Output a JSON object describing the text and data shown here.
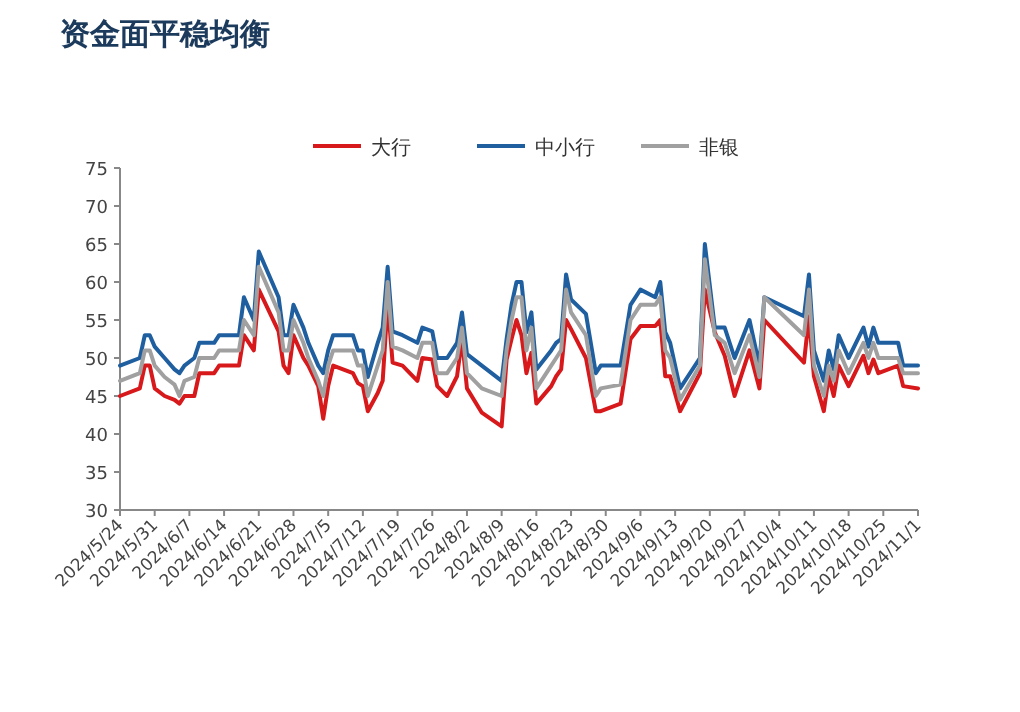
{
  "chart_data": {
    "type": "line",
    "title": "资金面平稳均衡",
    "legend": "top",
    "grid": false,
    "marker": "none",
    "line_style": "solid",
    "x": [
      "2024-05-24",
      "2024-05-28",
      "2024-05-29",
      "2024-05-30",
      "2024-05-31",
      "2024-06-02",
      "2024-06-04",
      "2024-06-05",
      "2024-06-06",
      "2024-06-08",
      "2024-06-09",
      "2024-06-12",
      "2024-06-13",
      "2024-06-14",
      "2024-06-17",
      "2024-06-18",
      "2024-06-20",
      "2024-06-21",
      "2024-06-25",
      "2024-06-26",
      "2024-06-27",
      "2024-06-28",
      "2024-06-30",
      "2024-07-01",
      "2024-07-03",
      "2024-07-04",
      "2024-07-05",
      "2024-07-06",
      "2024-07-10",
      "2024-07-11",
      "2024-07-12",
      "2024-07-13",
      "2024-07-15",
      "2024-07-16",
      "2024-07-17",
      "2024-07-18",
      "2024-07-20",
      "2024-07-23",
      "2024-07-24",
      "2024-07-26",
      "2024-07-27",
      "2024-07-29",
      "2024-07-31",
      "2024-08-01",
      "2024-08-02",
      "2024-08-05",
      "2024-08-09",
      "2024-08-10",
      "2024-08-11",
      "2024-08-12",
      "2024-08-13",
      "2024-08-14",
      "2024-08-15",
      "2024-08-16",
      "2024-08-19",
      "2024-08-20",
      "2024-08-21",
      "2024-08-22",
      "2024-08-23",
      "2024-08-26",
      "2024-08-28",
      "2024-08-29",
      "2024-09-02",
      "2024-09-04",
      "2024-09-06",
      "2024-09-09",
      "2024-09-10",
      "2024-09-11",
      "2024-09-12",
      "2024-09-14",
      "2024-09-18",
      "2024-09-19",
      "2024-09-21",
      "2024-09-23",
      "2024-09-25",
      "2024-09-28",
      "2024-09-30",
      "2024-10-01",
      "2024-10-09",
      "2024-10-10",
      "2024-10-11",
      "2024-10-13",
      "2024-10-14",
      "2024-10-15",
      "2024-10-16",
      "2024-10-18",
      "2024-10-21",
      "2024-10-22",
      "2024-10-23",
      "2024-10-24",
      "2024-10-28",
      "2024-10-29",
      "2024-11-01"
    ],
    "series": [
      {
        "name": "大行",
        "color": "#d7191c",
        "values": [
          45,
          46,
          49,
          49,
          46,
          45,
          44.5,
          44,
          45,
          45,
          48,
          48,
          49,
          49,
          49,
          53,
          51,
          59,
          53.5,
          49,
          48,
          53,
          50,
          49,
          46.3,
          42,
          46.3,
          49,
          48,
          46.7,
          46.3,
          43,
          45.4,
          47,
          57.3,
          49.4,
          49,
          47,
          50,
          49.8,
          46.3,
          45,
          47.6,
          52.5,
          46,
          42.8,
          41,
          49.8,
          52.5,
          55,
          53,
          48,
          50.7,
          44,
          46.3,
          47.6,
          48.5,
          55,
          53.8,
          50,
          43,
          43,
          44,
          52.5,
          54.2,
          54.2,
          55,
          47.6,
          47.6,
          43,
          48,
          59,
          53.4,
          50.3,
          45,
          51,
          46,
          55,
          49.4,
          55.5,
          47.6,
          43,
          47.6,
          45,
          49,
          46.3,
          50.3,
          48,
          49.8,
          48,
          49,
          46.3,
          46
        ]
      },
      {
        "name": "中小行",
        "color": "#1f5fa0",
        "values": [
          49,
          50,
          53,
          53,
          51.5,
          50,
          48.5,
          48,
          49,
          50,
          52,
          52,
          53,
          53,
          53,
          58,
          55,
          64,
          58,
          53,
          53,
          57,
          54,
          52,
          49,
          48,
          51,
          53,
          53,
          51,
          51,
          47.5,
          52,
          54,
          62,
          53.5,
          53,
          52,
          54,
          53.5,
          50,
          50,
          52,
          56,
          50.5,
          49,
          47,
          52.5,
          57,
          60,
          60,
          53.4,
          56,
          48.5,
          51,
          52,
          52.5,
          61,
          57.7,
          55.8,
          48,
          49,
          49,
          57,
          59,
          58,
          60,
          53.4,
          52,
          46,
          50,
          65,
          54,
          54,
          50,
          55,
          49,
          58,
          55.5,
          61,
          51,
          47,
          51,
          48.5,
          53,
          50,
          54,
          51.5,
          54,
          52,
          52,
          49,
          49
        ]
      },
      {
        "name": "非银",
        "color": "#a0a0a0",
        "values": [
          47,
          48,
          51,
          51,
          49,
          47.5,
          46.5,
          45,
          47,
          47.5,
          50,
          50,
          51,
          51,
          51,
          55,
          53,
          62,
          56,
          51,
          51,
          55,
          52,
          50,
          47,
          45,
          49,
          51,
          51,
          49,
          49,
          45,
          49,
          51,
          60,
          51.5,
          51,
          50,
          52,
          52,
          48,
          48,
          50,
          54,
          48,
          46,
          45,
          51,
          55,
          58,
          58,
          51,
          54,
          46,
          49,
          50,
          51,
          59,
          56,
          53,
          45,
          46,
          46.5,
          55,
          57,
          57,
          58,
          51,
          50,
          44.5,
          49,
          63,
          53,
          52,
          48,
          53,
          47.5,
          58,
          53,
          59,
          49,
          45,
          49,
          47,
          51,
          48,
          52,
          50,
          52,
          50,
          50,
          48,
          48
        ]
      }
    ],
    "xlim": [
      "2024-05-24",
      "2024-11-01"
    ],
    "xticks": [
      {
        "value": "2024-05-24",
        "label": "2024/5/24"
      },
      {
        "value": "2024-05-31",
        "label": "2024/5/31"
      },
      {
        "value": "2024-06-07",
        "label": "2024/6/7"
      },
      {
        "value": "2024-06-14",
        "label": "2024/6/14"
      },
      {
        "value": "2024-06-21",
        "label": "2024/6/21"
      },
      {
        "value": "2024-06-28",
        "label": "2024/6/28"
      },
      {
        "value": "2024-07-05",
        "label": "2024/7/5"
      },
      {
        "value": "2024-07-12",
        "label": "2024/7/12"
      },
      {
        "value": "2024-07-19",
        "label": "2024/7/19"
      },
      {
        "value": "2024-07-26",
        "label": "2024/7/26"
      },
      {
        "value": "2024-08-02",
        "label": "2024/8/2"
      },
      {
        "value": "2024-08-09",
        "label": "2024/8/9"
      },
      {
        "value": "2024-08-16",
        "label": "2024/8/16"
      },
      {
        "value": "2024-08-23",
        "label": "2024/8/23"
      },
      {
        "value": "2024-08-30",
        "label": "2024/8/30"
      },
      {
        "value": "2024-09-06",
        "label": "2024/9/6"
      },
      {
        "value": "2024-09-13",
        "label": "2024/9/13"
      },
      {
        "value": "2024-09-20",
        "label": "2024/9/20"
      },
      {
        "value": "2024-09-27",
        "label": "2024/9/27"
      },
      {
        "value": "2024-10-04",
        "label": "2024/10/4"
      },
      {
        "value": "2024-10-11",
        "label": "2024/10/11"
      },
      {
        "value": "2024-10-18",
        "label": "2024/10/18"
      },
      {
        "value": "2024-10-25",
        "label": "2024/10/25"
      },
      {
        "value": "2024-11-01",
        "label": "2024/11/1"
      }
    ],
    "ylim": [
      30,
      75
    ],
    "yticks": [
      30,
      35,
      40,
      45,
      50,
      55,
      60,
      65,
      70,
      75
    ]
  }
}
